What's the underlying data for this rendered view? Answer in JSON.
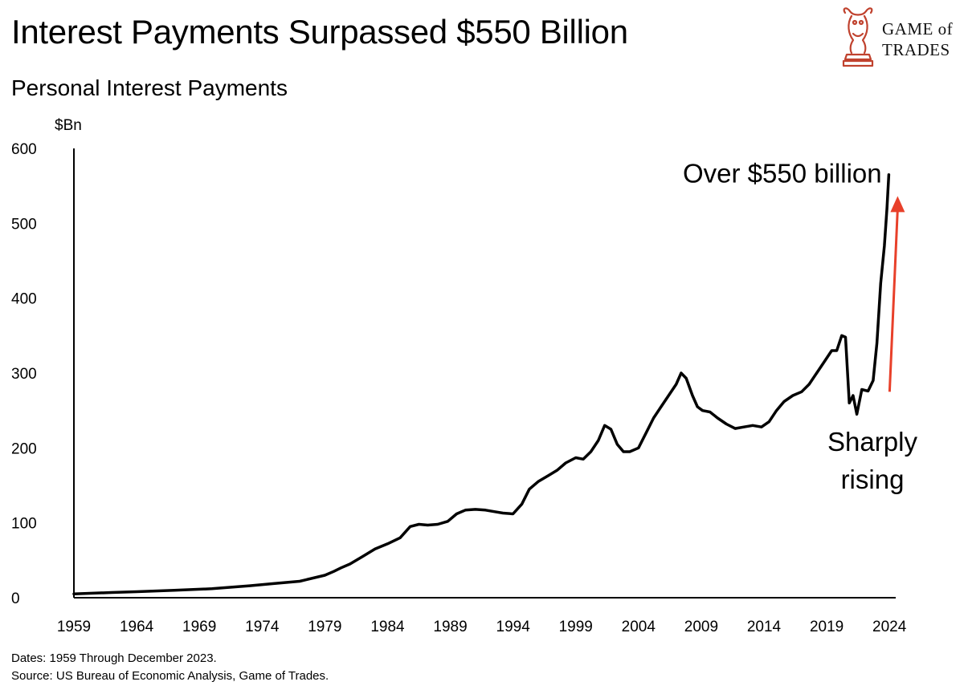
{
  "header": {
    "title": "Interest Payments Surpassed $550 Billion",
    "subtitle": "Personal Interest Payments"
  },
  "logo": {
    "line1": "GAME of",
    "line2": "TRADES",
    "color": "#c0422e",
    "icon": "bull-chess-knight-icon"
  },
  "footnote": {
    "dates": "Dates: 1959 Through December 2023.",
    "source": "Source: US Bureau of Economic Analysis, Game of Trades."
  },
  "chart_data": {
    "type": "line",
    "title": "Personal Interest Payments",
    "ylabel": "$Bn",
    "xlabel": "",
    "xlim": [
      1959,
      2024.5
    ],
    "ylim": [
      0,
      600
    ],
    "xticks": [
      1959,
      1964,
      1969,
      1974,
      1979,
      1984,
      1989,
      1994,
      1999,
      2004,
      2009,
      2014,
      2019,
      2024
    ],
    "yticks": [
      0,
      100,
      200,
      300,
      400,
      500,
      600
    ],
    "grid": false,
    "line_color": "#000000",
    "arrow_color": "#e8402a",
    "annotations": [
      {
        "text": "Over $550 billion",
        "x": 2023.9,
        "y": 565
      },
      {
        "text": "Sharply",
        "x": 2022.5,
        "y": 200
      },
      {
        "text": "rising",
        "x": 2022.5,
        "y": 155
      }
    ],
    "arrow": {
      "from": [
        2023.5,
        275
      ],
      "to": [
        2023.5,
        530
      ]
    },
    "series": [
      {
        "name": "Personal Interest Payments",
        "x": [
          1959,
          1962,
          1964,
          1967,
          1970,
          1973,
          1975,
          1977,
          1979,
          1979.7,
          1980.3,
          1981,
          1982,
          1983,
          1984,
          1985,
          1985.8,
          1986.5,
          1987.2,
          1988,
          1988.8,
          1989.5,
          1990.2,
          1991,
          1991.8,
          1992.5,
          1993.2,
          1994,
          1994.7,
          1995.3,
          1996,
          1996.8,
          1997.5,
          1998.2,
          1999,
          1999.6,
          2000.2,
          2000.8,
          2001.3,
          2001.8,
          2002.3,
          2002.8,
          2003.3,
          2004,
          2004.6,
          2005.2,
          2005.8,
          2006.4,
          2007,
          2007.4,
          2007.8,
          2008.3,
          2008.7,
          2009.1,
          2009.7,
          2010.3,
          2011,
          2011.7,
          2012.4,
          2013.1,
          2013.8,
          2014.4,
          2015,
          2015.6,
          2016.3,
          2017,
          2017.6,
          2018.2,
          2018.8,
          2019.4,
          2019.8,
          2020.2,
          2020.5,
          2020.8,
          2021.1,
          2021.4,
          2021.8,
          2022.3,
          2022.7,
          2023.0,
          2023.3,
          2023.6,
          2023.8,
          2023.95
        ],
        "values": [
          5,
          7,
          8,
          10,
          12,
          16,
          19,
          22,
          30,
          35,
          40,
          45,
          55,
          65,
          72,
          80,
          95,
          98,
          97,
          98,
          102,
          112,
          117,
          118,
          117,
          115,
          113,
          112,
          125,
          145,
          155,
          163,
          170,
          180,
          187,
          185,
          195,
          210,
          230,
          225,
          205,
          195,
          195,
          200,
          220,
          240,
          255,
          270,
          285,
          300,
          293,
          270,
          255,
          250,
          248,
          240,
          232,
          226,
          228,
          230,
          228,
          235,
          250,
          262,
          270,
          275,
          285,
          300,
          315,
          330,
          330,
          350,
          348,
          260,
          270,
          245,
          278,
          276,
          290,
          340,
          420,
          470,
          520,
          565
        ]
      }
    ]
  }
}
